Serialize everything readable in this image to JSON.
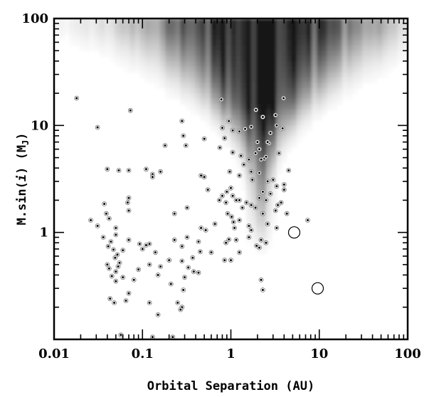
{
  "chart_data": {
    "type": "scatter",
    "xlabel": "Orbital Separation (AU)",
    "ylabel_text": "M.sin(",
    "ylabel_italic": "i",
    "ylabel_rest": ") (M",
    "ylabel_sub": "J",
    "ylabel_close": ")",
    "xscale": "log",
    "yscale": "log",
    "xlim": [
      0.01,
      100
    ],
    "ylim": [
      0.1,
      100
    ],
    "x_ticks": [
      {
        "value": 0.01,
        "label": "0.01"
      },
      {
        "value": 0.1,
        "label": "0.1"
      },
      {
        "value": 1,
        "label": "1"
      },
      {
        "value": 10,
        "label": "10"
      },
      {
        "value": 100,
        "label": "100"
      }
    ],
    "y_ticks": [
      {
        "value": 1,
        "label": "1"
      },
      {
        "value": 10,
        "label": "10"
      },
      {
        "value": 100,
        "label": "100"
      }
    ],
    "background": "grayscale density map, darkest near 1-3 AU and above ~5 Mj",
    "grid": false,
    "series": [
      {
        "marker": "filled-dot",
        "points": [
          [
            0.018,
            18
          ],
          [
            0.031,
            9.6
          ],
          [
            0.073,
            13.8
          ],
          [
            0.28,
            11
          ],
          [
            0.29,
            8
          ],
          [
            0.31,
            6.5
          ],
          [
            0.18,
            6.5
          ],
          [
            0.5,
            7.5
          ],
          [
            0.75,
            6.2
          ],
          [
            0.85,
            7.6
          ],
          [
            0.8,
            9.5
          ],
          [
            0.95,
            11
          ],
          [
            0.78,
            17.5
          ],
          [
            1.05,
            9
          ],
          [
            1.25,
            8.8
          ],
          [
            1.45,
            9.3
          ],
          [
            1.7,
            9.7
          ],
          [
            2.0,
            7
          ],
          [
            1.92,
            14
          ],
          [
            2.3,
            12
          ],
          [
            2.8,
            8.5
          ],
          [
            3.3,
            10
          ],
          [
            3.7,
            9.3
          ],
          [
            3.85,
            9.4
          ],
          [
            3.95,
            18
          ],
          [
            3.2,
            12.5
          ],
          [
            1.05,
            5.6
          ],
          [
            1.3,
            5.2
          ],
          [
            1.6,
            4.8
          ],
          [
            1.9,
            5.5
          ],
          [
            2.1,
            6
          ],
          [
            2.7,
            6.8
          ],
          [
            2.6,
            7
          ],
          [
            2.2,
            4.8
          ],
          [
            2.4,
            4.9
          ],
          [
            2.5,
            5.1
          ],
          [
            3.5,
            5.5
          ],
          [
            4.5,
            3.8
          ],
          [
            0.04,
            3.9
          ],
          [
            0.054,
            3.8
          ],
          [
            0.07,
            3.8
          ],
          [
            0.11,
            3.9
          ],
          [
            0.13,
            3.5
          ],
          [
            0.16,
            3.7
          ],
          [
            0.13,
            3.3
          ],
          [
            0.46,
            3.4
          ],
          [
            0.5,
            3.3
          ],
          [
            0.97,
            3.7
          ],
          [
            1.25,
            3.4
          ],
          [
            1.4,
            4.3
          ],
          [
            1.7,
            3.7
          ],
          [
            1.75,
            3.1
          ],
          [
            2.1,
            3.6
          ],
          [
            2.6,
            3.0
          ],
          [
            3.0,
            3.1
          ],
          [
            3.3,
            2.7
          ],
          [
            4.0,
            2.8
          ],
          [
            4.0,
            2.5
          ],
          [
            0.55,
            2.5
          ],
          [
            0.8,
            2.2
          ],
          [
            0.9,
            2.4
          ],
          [
            0.88,
            1.9
          ],
          [
            1.0,
            2.6
          ],
          [
            1.05,
            2.2
          ],
          [
            1.15,
            2.0
          ],
          [
            1.25,
            2.0
          ],
          [
            1.35,
            1.7
          ],
          [
            1.5,
            1.9
          ],
          [
            1.7,
            1.8
          ],
          [
            1.9,
            1.7
          ],
          [
            2.1,
            2.1
          ],
          [
            2.3,
            2.4
          ],
          [
            2.5,
            2.0
          ],
          [
            2.8,
            2.3
          ],
          [
            3.2,
            1.6
          ],
          [
            3.4,
            1.8
          ],
          [
            3.7,
            1.9
          ],
          [
            4.3,
            1.5
          ],
          [
            0.74,
            2.0
          ],
          [
            0.037,
            1.85
          ],
          [
            0.039,
            1.5
          ],
          [
            0.07,
            2.1
          ],
          [
            0.068,
            1.9
          ],
          [
            0.07,
            1.6
          ],
          [
            0.32,
            1.7
          ],
          [
            0.23,
            1.5
          ],
          [
            0.026,
            1.3
          ],
          [
            0.031,
            1.15
          ],
          [
            0.042,
            1.35
          ],
          [
            0.05,
            1.1
          ],
          [
            0.92,
            1.5
          ],
          [
            1.02,
            1.4
          ],
          [
            1.07,
            1.25
          ],
          [
            1.1,
            1.1
          ],
          [
            1.25,
            1.3
          ],
          [
            1.6,
            1.15
          ],
          [
            2.3,
            1.5
          ],
          [
            2.6,
            1.2
          ],
          [
            3.3,
            1.1
          ],
          [
            7.4,
            1.3
          ],
          [
            0.46,
            1.1
          ],
          [
            0.52,
            1.05
          ],
          [
            0.66,
            1.2
          ],
          [
            0.036,
            0.9
          ],
          [
            0.044,
            0.82
          ],
          [
            0.05,
            0.95
          ],
          [
            0.041,
            0.74
          ],
          [
            0.047,
            0.69
          ],
          [
            0.052,
            0.62
          ],
          [
            0.06,
            0.68
          ],
          [
            0.07,
            0.85
          ],
          [
            0.093,
            0.78
          ],
          [
            0.1,
            0.7
          ],
          [
            0.11,
            0.76
          ],
          [
            0.12,
            0.78
          ],
          [
            0.14,
            0.65
          ],
          [
            0.23,
            0.85
          ],
          [
            0.32,
            0.9
          ],
          [
            0.28,
            0.74
          ],
          [
            0.43,
            0.82
          ],
          [
            0.45,
            0.66
          ],
          [
            0.37,
            0.58
          ],
          [
            0.6,
            0.65
          ],
          [
            0.88,
            0.8
          ],
          [
            0.95,
            0.86
          ],
          [
            1.15,
            0.85
          ],
          [
            1.6,
            0.9
          ],
          [
            1.95,
            0.75
          ],
          [
            2.2,
            0.85
          ],
          [
            2.5,
            0.8
          ],
          [
            2.1,
            0.72
          ],
          [
            1.25,
            0.65
          ],
          [
            1.0,
            0.55
          ],
          [
            0.85,
            0.55
          ],
          [
            0.049,
            0.58
          ],
          [
            0.04,
            0.5
          ],
          [
            0.042,
            0.46
          ],
          [
            0.05,
            0.43
          ],
          [
            0.053,
            0.48
          ],
          [
            0.055,
            0.52
          ],
          [
            0.09,
            0.45
          ],
          [
            0.12,
            0.5
          ],
          [
            0.16,
            0.48
          ],
          [
            0.2,
            0.55
          ],
          [
            0.28,
            0.54
          ],
          [
            0.33,
            0.47
          ],
          [
            0.38,
            0.43
          ],
          [
            0.045,
            0.39
          ],
          [
            0.05,
            0.35
          ],
          [
            0.06,
            0.38
          ],
          [
            0.08,
            0.36
          ],
          [
            0.15,
            0.4
          ],
          [
            0.21,
            0.33
          ],
          [
            0.3,
            0.38
          ],
          [
            0.43,
            0.42
          ],
          [
            0.07,
            0.27
          ],
          [
            0.29,
            0.29
          ],
          [
            2.2,
            0.36
          ],
          [
            0.043,
            0.24
          ],
          [
            0.048,
            0.22
          ],
          [
            0.065,
            0.23
          ],
          [
            0.12,
            0.22
          ],
          [
            0.25,
            0.22
          ],
          [
            0.28,
            0.2
          ],
          [
            0.27,
            0.19
          ],
          [
            0.15,
            0.17
          ],
          [
            0.057,
            0.11
          ],
          [
            0.13,
            0.105
          ],
          [
            0.22,
            0.105
          ],
          [
            2.3,
            0.29
          ],
          [
            1.7,
            1.05
          ]
        ]
      },
      {
        "marker": "open-circle",
        "points": [
          [
            5.2,
            1.0
          ],
          [
            9.6,
            0.3
          ]
        ]
      }
    ]
  }
}
